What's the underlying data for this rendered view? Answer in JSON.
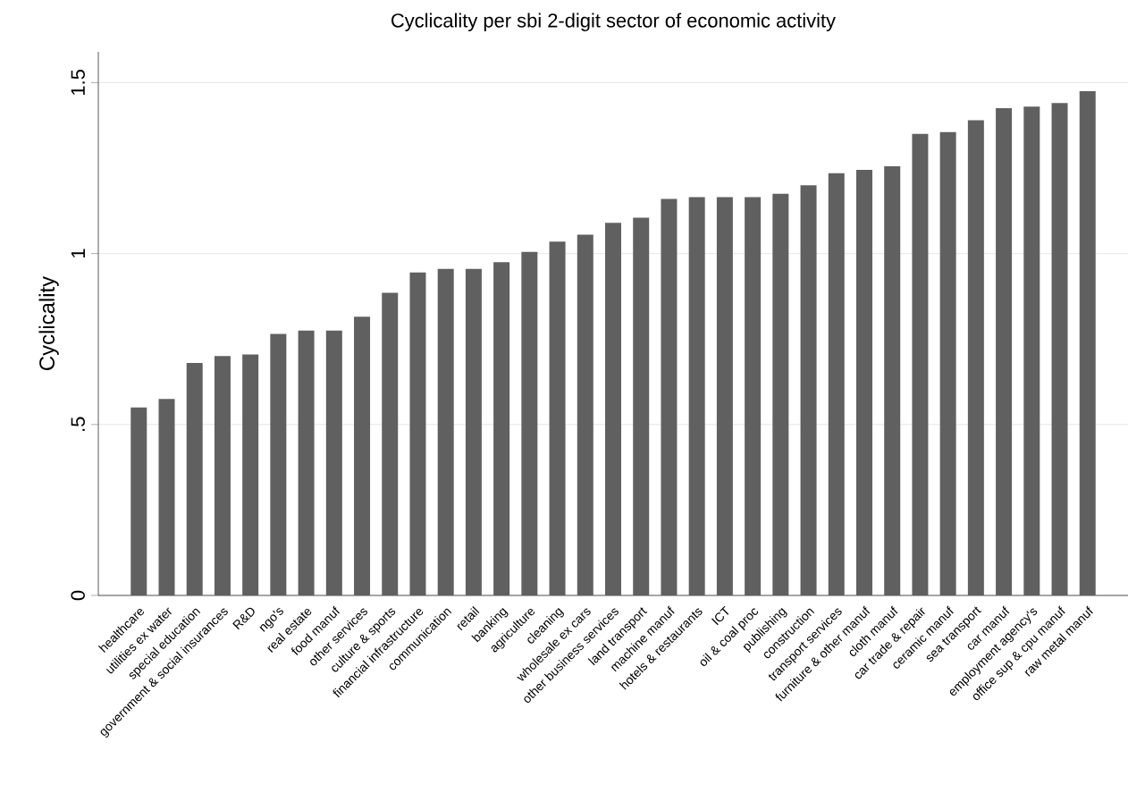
{
  "chart_data": {
    "type": "bar",
    "title": "Cyclicality per sbi 2-digit sector of economic activity",
    "ylabel": "Cyclicality",
    "categories": [
      "healthcare",
      "utilities ex water",
      "special education",
      "government & social insurances",
      "R&D",
      "ngo's",
      "real estate",
      "food manuf",
      "other services",
      "culture & sports",
      "financial infrastructure",
      "communication",
      "retail",
      "banking",
      "agriculture",
      "cleaning",
      "wholesale ex cars",
      "other business services",
      "land transport",
      "machine manuf",
      "hotels & restaurants",
      "ICT",
      "oil & coal proc",
      "publishing",
      "construction",
      "transport services",
      "furniture & other manuf",
      "cloth manuf",
      "car trade & repair",
      "ceramic manuf",
      "sea transport",
      "car manuf",
      "employment agency's",
      "office sup & cpu manuf",
      "raw metal manuf"
    ],
    "values": [
      0.55,
      0.575,
      0.68,
      0.7,
      0.705,
      0.765,
      0.775,
      0.775,
      0.815,
      0.885,
      0.945,
      0.955,
      0.955,
      0.975,
      1.005,
      1.035,
      1.055,
      1.09,
      1.105,
      1.16,
      1.165,
      1.165,
      1.165,
      1.175,
      1.2,
      1.235,
      1.245,
      1.255,
      1.35,
      1.355,
      1.39,
      1.425,
      1.43,
      1.44,
      1.475
    ],
    "color": "#606060",
    "ylim": [
      0,
      1.59
    ],
    "yticks": [
      0,
      {
        "value": 0.5,
        "label": ".5"
      },
      1,
      1.5
    ],
    "grid": "y"
  }
}
